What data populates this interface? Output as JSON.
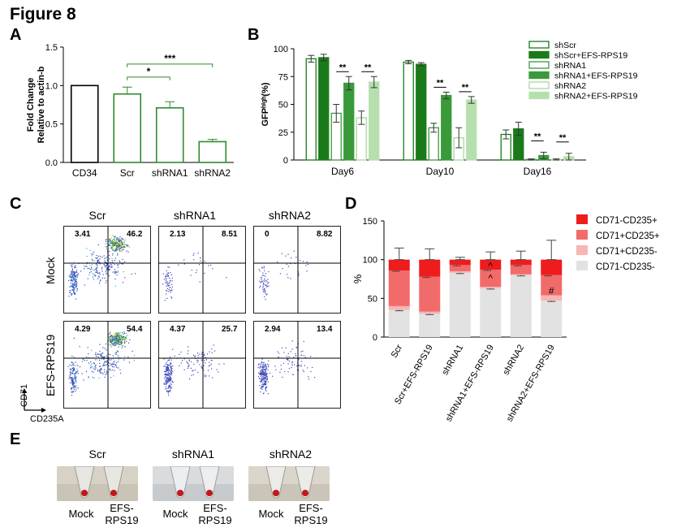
{
  "figure_title": "Figure 8",
  "panels": {
    "A": {
      "label": "A"
    },
    "B": {
      "label": "B"
    },
    "C": {
      "label": "C"
    },
    "D": {
      "label": "D"
    },
    "E": {
      "label": "E"
    }
  },
  "chart_data": [
    {
      "id": "A",
      "type": "bar",
      "categories": [
        "CD34",
        "Scr",
        "shRNA1",
        "shRNA2"
      ],
      "values": [
        1.0,
        0.89,
        0.71,
        0.27
      ],
      "errors": [
        0,
        0.09,
        0.08,
        0.03
      ],
      "bar_colors": [
        "#000000",
        "#2e8b2e",
        "#2e8b2e",
        "#2e8b2e"
      ],
      "ylabel_line1": "Fold Change",
      "ylabel_line2": "Relative to actin-b",
      "ylim": [
        0,
        1.5
      ],
      "yticks": [
        "0.0",
        "0.5",
        "1.0",
        "1.5"
      ],
      "significance": [
        {
          "from": "Scr",
          "to": "shRNA1",
          "label": "*"
        },
        {
          "from": "Scr",
          "to": "shRNA2",
          "label": "***"
        }
      ]
    },
    {
      "id": "B",
      "type": "bar",
      "categories": [
        "Day6",
        "Day10",
        "Day16"
      ],
      "series": [
        {
          "name": "shScr",
          "values": [
            91,
            88,
            23
          ],
          "errors": [
            3,
            1.5,
            4
          ],
          "fill": "#ffffff",
          "stroke": "#1a7a1a"
        },
        {
          "name": "shScr+EFS-RPS19",
          "values": [
            92,
            86,
            28
          ],
          "errors": [
            3,
            1.5,
            6
          ],
          "fill": "#1a7a1a",
          "stroke": "#1a7a1a"
        },
        {
          "name": "shRNA1",
          "values": [
            42,
            29,
            0.5
          ],
          "errors": [
            8,
            4,
            0.5
          ],
          "fill": "#ffffff",
          "stroke": "#3a9a3a"
        },
        {
          "name": "shRNA1+EFS-RPS19",
          "values": [
            69,
            58,
            4
          ],
          "errors": [
            6,
            3,
            3
          ],
          "fill": "#3a9a3a",
          "stroke": "#3a9a3a"
        },
        {
          "name": "shRNA2",
          "values": [
            38,
            20,
            0.5
          ],
          "errors": [
            6,
            9,
            0.5
          ],
          "fill": "#ffffff",
          "stroke": "#a8d8a0"
        },
        {
          "name": "shRNA2+EFS-RPS19",
          "values": [
            70,
            54,
            3
          ],
          "errors": [
            5,
            3,
            3
          ],
          "fill": "#b5e0ad",
          "stroke": "#b5e0ad"
        }
      ],
      "ylabel": "GFPʰⁱᵍʰ(%)",
      "ylim": [
        0,
        100
      ],
      "yticks": [
        "0",
        "25",
        "50",
        "75",
        "100"
      ],
      "significance_label": "**",
      "legend_placement": "top-right"
    },
    {
      "id": "D",
      "type": "bar",
      "stacked": true,
      "categories": [
        "Scr",
        "Scr+EFS-RPS19",
        "shRNA1",
        "shRNA1+EFS-RPS19",
        "shRNA2",
        "shRNA2+EFS-RPS19"
      ],
      "series": [
        {
          "name": "CD71-CD235-",
          "values": [
            35,
            30,
            83,
            63,
            80,
            47
          ],
          "color": "#e2e2e2"
        },
        {
          "name": "CD71+CD235-",
          "values": [
            5,
            3,
            2,
            2,
            1,
            7
          ],
          "color": "#f7b5b5"
        },
        {
          "name": "CD71+CD235+",
          "values": [
            46,
            45,
            8,
            22,
            12,
            26
          ],
          "color": "#f26b6b"
        },
        {
          "name": "CD71-CD235+",
          "values": [
            14,
            22,
            7,
            13,
            7,
            20
          ],
          "color": "#ee1c1c"
        }
      ],
      "ylabel": "%",
      "ylim": [
        0,
        150
      ],
      "yticks": [
        "0",
        "50",
        "100",
        "150"
      ],
      "annotations": [
        {
          "category": "shRNA1+EFS-RPS19",
          "label": "^"
        },
        {
          "category": "shRNA2+EFS-RPS19",
          "label": "#"
        }
      ],
      "legend_placement": "right"
    }
  ],
  "flow": {
    "columns": [
      "Scr",
      "shRNA1",
      "shRNA2"
    ],
    "rows": [
      "Mock",
      "EFS-RPS19"
    ],
    "quadrant_values": [
      [
        {
          "ul": "3.41",
          "ur": "46.2"
        },
        {
          "ul": "2.13",
          "ur": "8.51"
        },
        {
          "ul": "0",
          "ur": "8.82"
        }
      ],
      [
        {
          "ul": "4.29",
          "ur": "54.4"
        },
        {
          "ul": "4.37",
          "ur": "25.7"
        },
        {
          "ul": "2.94",
          "ur": "13.4"
        }
      ]
    ],
    "density": [
      [
        3,
        1,
        1
      ],
      [
        3,
        2,
        2
      ]
    ],
    "y_axis_label": "CD71",
    "x_axis_label": "CD235A"
  },
  "tubes": {
    "groups": [
      "Scr",
      "shRNA1",
      "shRNA2"
    ],
    "mock_label": "Mock",
    "efs_label_line1": "EFS-",
    "efs_label_line2": "RPS19"
  }
}
